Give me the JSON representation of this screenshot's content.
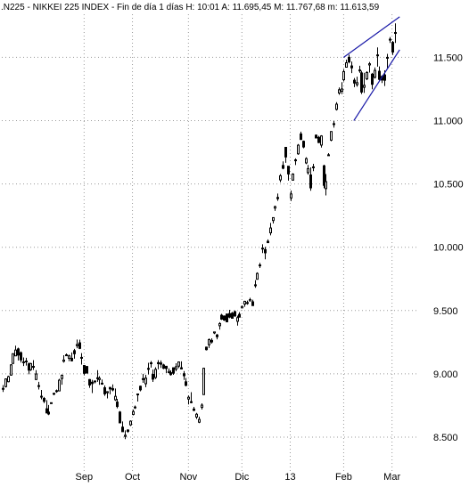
{
  "colors": {
    "background": "#ffffff",
    "grid": "#9a9a9a",
    "candle": "#000000",
    "channel": "#1a1aa8",
    "text": "#000000"
  },
  "chart_data": {
    "type": "candlestick",
    "title": ".N225 - NIKKEI 225 INDEX - Fin de día 1 días H: 10:01  A: 11.695,45  M: 11.767,68  m: 11.613,59",
    "ylim": [
      8450,
      11900
    ],
    "y_ticks": [
      "8.500",
      "9.000",
      "9.500",
      "10.000",
      "10.500",
      "11.000",
      "11.500"
    ],
    "y_tick_values": [
      8500,
      9000,
      9500,
      10000,
      10500,
      11000,
      11500
    ],
    "x_ticks": [
      "Sep",
      "Oct",
      "Nov",
      "Dic",
      "13",
      "Feb",
      "Mar"
    ],
    "x_tick_sessions": [
      32,
      51,
      73,
      94,
      113,
      134,
      153
    ],
    "grid": true,
    "y_axis_position": "right",
    "sessions": 156,
    "ohlc": [
      [
        0,
        8881,
        8911,
        8857,
        8885
      ],
      [
        1,
        8899,
        8962,
        8893,
        8960
      ],
      [
        2,
        8938,
        8985,
        8933,
        8978
      ],
      [
        3,
        8990,
        9077,
        8986,
        9071
      ],
      [
        4,
        9082,
        9162,
        9079,
        9159
      ],
      [
        5,
        9142,
        9223,
        9141,
        9188
      ],
      [
        6,
        9197,
        9207,
        9106,
        9148
      ],
      [
        7,
        9167,
        9177,
        9089,
        9110
      ],
      [
        8,
        9095,
        9129,
        9062,
        9089
      ],
      [
        9,
        9101,
        9127,
        9065,
        9096
      ],
      [
        10,
        9079,
        9089,
        8997,
        9029
      ],
      [
        11,
        9033,
        9087,
        9023,
        9081
      ],
      [
        12,
        9054,
        9108,
        9031,
        9059
      ],
      [
        13,
        8955,
        9029,
        8953,
        8999
      ],
      [
        14,
        8907,
        8937,
        8876,
        8907
      ],
      [
        15,
        8820,
        8873,
        8799,
        8823
      ],
      [
        16,
        8806,
        8817,
        8769,
        8783
      ],
      [
        17,
        8724,
        8793,
        8689,
        8691
      ],
      [
        18,
        8698,
        8754,
        8674,
        8683
      ],
      [
        19,
        8772,
        8772,
        8765,
        8769
      ],
      [
        20,
        8842,
        8851,
        8831,
        8846
      ],
      [
        21,
        8865,
        8876,
        8851,
        8867
      ],
      [
        22,
        8865,
        8961,
        8863,
        8950
      ],
      [
        23,
        8963,
        8995,
        8914,
        8989
      ],
      [
        24,
        9099,
        9147,
        9089,
        9109
      ],
      [
        25,
        9145,
        9161,
        9143,
        9150
      ],
      [
        26,
        9123,
        9151,
        9100,
        9142
      ],
      [
        27,
        9123,
        9169,
        9099,
        9103
      ],
      [
        28,
        9183,
        9197,
        9120,
        9159
      ],
      [
        29,
        9222,
        9271,
        9202,
        9232
      ],
      [
        30,
        9245,
        9270,
        9195,
        9201
      ],
      [
        31,
        9130,
        9164,
        9073,
        9126
      ],
      [
        32,
        9066,
        9068,
        8988,
        9004
      ],
      [
        33,
        9058,
        9063,
        9003,
        9006
      ],
      [
        34,
        8955,
        8959,
        8889,
        8912
      ],
      [
        35,
        8934,
        8953,
        8848,
        8923
      ],
      [
        36,
        8937,
        8945,
        8925,
        8944
      ],
      [
        37,
        8967,
        9029,
        8937,
        8969
      ],
      [
        38,
        8955,
        8982,
        8913,
        8965
      ],
      [
        39,
        8921,
        8955,
        8914,
        8926
      ],
      [
        40,
        8890,
        8909,
        8826,
        8842
      ],
      [
        41,
        8851,
        8863,
        8806,
        8859
      ],
      [
        42,
        8893,
        8894,
        8838,
        8881
      ],
      [
        43,
        8883,
        8917,
        8862,
        8873
      ],
      [
        44,
        8795,
        8884,
        8787,
        8822
      ],
      [
        45,
        8777,
        8802,
        8728,
        8742
      ],
      [
        46,
        8698,
        8707,
        8610,
        8613
      ],
      [
        47,
        8579,
        8624,
        8543,
        8543
      ],
      [
        48,
        8506,
        8554,
        8484,
        8515
      ],
      [
        49,
        8556,
        8562,
        8534,
        8546
      ],
      [
        50,
        8597,
        8633,
        8588,
        8626
      ],
      [
        51,
        8679,
        8718,
        8672,
        8702
      ],
      [
        52,
        8734,
        8750,
        8722,
        8738
      ],
      [
        53,
        8836,
        8844,
        8781,
        8841
      ],
      [
        54,
        8902,
        8907,
        8862,
        8874
      ],
      [
        55,
        8957,
        9000,
        8929,
        8962
      ],
      [
        56,
        8922,
        8991,
        8895,
        8966
      ],
      [
        57,
        9039,
        9087,
        8995,
        9043
      ],
      [
        58,
        9080,
        9101,
        9049,
        9087
      ],
      [
        59,
        8996,
        9034,
        8936,
        8958
      ],
      [
        60,
        8971,
        9052,
        8959,
        9035
      ],
      [
        61,
        9081,
        9108,
        9036,
        9088
      ],
      [
        62,
        9086,
        9106,
        9047,
        9076
      ],
      [
        63,
        9070,
        9079,
        9037,
        9044
      ],
      [
        64,
        9060,
        9062,
        9006,
        9042
      ],
      [
        65,
        9010,
        9043,
        9004,
        9019
      ],
      [
        66,
        9009,
        9028,
        8986,
        8994
      ],
      [
        67,
        9048,
        9051,
        8992,
        9005
      ],
      [
        68,
        9037,
        9084,
        9020,
        9056
      ],
      [
        69,
        9061,
        9098,
        9045,
        9094
      ],
      [
        70,
        9048,
        9099,
        9035,
        9039
      ],
      [
        71,
        9001,
        9022,
        8952,
        8985
      ],
      [
        72,
        8937,
        8968,
        8902,
        8909
      ],
      [
        73,
        8801,
        8829,
        8758,
        8815
      ],
      [
        74,
        8775,
        8855,
        8767,
        8780
      ],
      [
        75,
        8722,
        8739,
        8706,
        8711
      ],
      [
        76,
        8659,
        8692,
        8643,
        8681
      ],
      [
        77,
        8618,
        8662,
        8611,
        8640
      ],
      [
        78,
        8735,
        8767,
        8718,
        8753
      ],
      [
        79,
        8836,
        9047,
        8835,
        9044
      ],
      [
        80,
        9211,
        9215,
        9185,
        9191
      ],
      [
        81,
        9230,
        9280,
        9204,
        9270
      ],
      [
        82,
        9264,
        9281,
        9239,
        9252
      ],
      [
        83,
        9323,
        9331,
        9314,
        9331
      ],
      [
        84,
        9307,
        9315,
        9273,
        9293
      ],
      [
        85,
        9380,
        9408,
        9349,
        9397
      ],
      [
        86,
        9463,
        9474,
        9426,
        9432
      ],
      [
        87,
        9457,
        9461,
        9418,
        9425
      ],
      [
        88,
        9472,
        9476,
        9410,
        9411
      ],
      [
        89,
        9476,
        9506,
        9440,
        9448
      ],
      [
        90,
        9479,
        9489,
        9436,
        9439
      ],
      [
        91,
        9491,
        9500,
        9451,
        9457
      ],
      [
        92,
        9415,
        9460,
        9381,
        9444
      ],
      [
        93,
        9470,
        9487,
        9445,
        9448
      ],
      [
        94,
        9521,
        9539,
        9518,
        9532
      ],
      [
        95,
        9551,
        9577,
        9529,
        9573
      ],
      [
        96,
        9563,
        9579,
        9546,
        9558
      ],
      [
        97,
        9576,
        9601,
        9574,
        9586
      ],
      [
        98,
        9569,
        9586,
        9537,
        9539
      ],
      [
        99,
        9703,
        9740,
        9680,
        9699
      ],
      [
        100,
        9747,
        9802,
        9745,
        9793
      ],
      [
        101,
        9860,
        9877,
        9836,
        9857
      ],
      [
        102,
        9993,
        10023,
        9954,
        9991
      ],
      [
        103,
        9982,
        10003,
        9905,
        9956
      ],
      [
        104,
        10047,
        10062,
        10034,
        10036
      ],
      [
        105,
        10114,
        10192,
        10094,
        10152
      ],
      [
        106,
        10211,
        10234,
        10188,
        10234
      ],
      [
        107,
        10309,
        10328,
        10287,
        10321
      ],
      [
        108,
        10393,
        10424,
        10366,
        10384
      ],
      [
        109,
        10532,
        10578,
        10513,
        10565
      ],
      [
        110,
        10646,
        10678,
        10616,
        10624
      ],
      [
        111,
        10789,
        10792,
        10667,
        10713
      ],
      [
        112,
        10640,
        10640,
        10526,
        10579
      ],
      [
        113,
        10389,
        10448,
        10365,
        10421
      ],
      [
        114,
        10530,
        10584,
        10528,
        10578
      ],
      [
        115,
        10689,
        10702,
        10649,
        10690
      ],
      [
        116,
        10738,
        10815,
        10730,
        10806
      ],
      [
        117,
        10895,
        10913,
        10848,
        10851
      ],
      [
        118,
        10837,
        10843,
        10782,
        10792
      ],
      [
        119,
        10666,
        10711,
        10656,
        10700
      ],
      [
        120,
        10589,
        10650,
        10574,
        10621
      ],
      [
        121,
        10571,
        10631,
        10446,
        10469
      ],
      [
        122,
        10631,
        10659,
        10601,
        10635
      ],
      [
        123,
        10885,
        10891,
        10863,
        10863
      ],
      [
        124,
        10868,
        10880,
        10822,
        10827
      ],
      [
        125,
        10807,
        10885,
        10787,
        10879
      ],
      [
        126,
        10643,
        10652,
        10466,
        10489
      ],
      [
        127,
        10463,
        10578,
        10409,
        10518
      ],
      [
        128,
        10730,
        10743,
        10723,
        10726
      ],
      [
        129,
        10846,
        10915,
        10837,
        10914
      ],
      [
        130,
        10976,
        10997,
        10945,
        10972
      ],
      [
        131,
        11089,
        11146,
        11080,
        11130
      ],
      [
        132,
        11218,
        11262,
        11204,
        11244
      ],
      [
        133,
        11232,
        11304,
        11210,
        11250
      ],
      [
        134,
        11323,
        11406,
        11309,
        11387
      ],
      [
        135,
        11422,
        11482,
        11418,
        11457
      ],
      [
        136,
        11500,
        11521,
        11453,
        11464
      ],
      [
        137,
        11432,
        11467,
        11375,
        11417
      ],
      [
        138,
        11319,
        11337,
        11265,
        11297
      ],
      [
        139,
        11284,
        11347,
        11268,
        11300
      ],
      [
        140,
        11400,
        11433,
        11378,
        11394
      ],
      [
        141,
        11377,
        11394,
        11210,
        11226
      ],
      [
        142,
        11263,
        11378,
        11219,
        11279
      ],
      [
        143,
        11330,
        11390,
        11320,
        11380
      ],
      [
        144,
        11440,
        11463,
        11380,
        11449
      ],
      [
        145,
        11367,
        11377,
        11248,
        11287
      ],
      [
        146,
        11342,
        11420,
        11332,
        11397
      ],
      [
        147,
        11517,
        11578,
        11426,
        11519
      ],
      [
        148,
        11390,
        11428,
        11317,
        11326
      ],
      [
        149,
        11349,
        11358,
        11297,
        11321
      ],
      [
        150,
        11361,
        11397,
        11273,
        11319
      ],
      [
        151,
        11500,
        11527,
        11413,
        11499
      ],
      [
        152,
        11643,
        11660,
        11614,
        11640
      ],
      [
        153,
        11618,
        11629,
        11519,
        11542
      ],
      [
        154,
        11696,
        11768,
        11614,
        11695
      ]
    ],
    "trendlines": [
      {
        "from": [
          134,
          11500
        ],
        "to": [
          156,
          11820
        ]
      },
      {
        "from": [
          138,
          11000
        ],
        "to": [
          156,
          11560
        ]
      }
    ]
  }
}
